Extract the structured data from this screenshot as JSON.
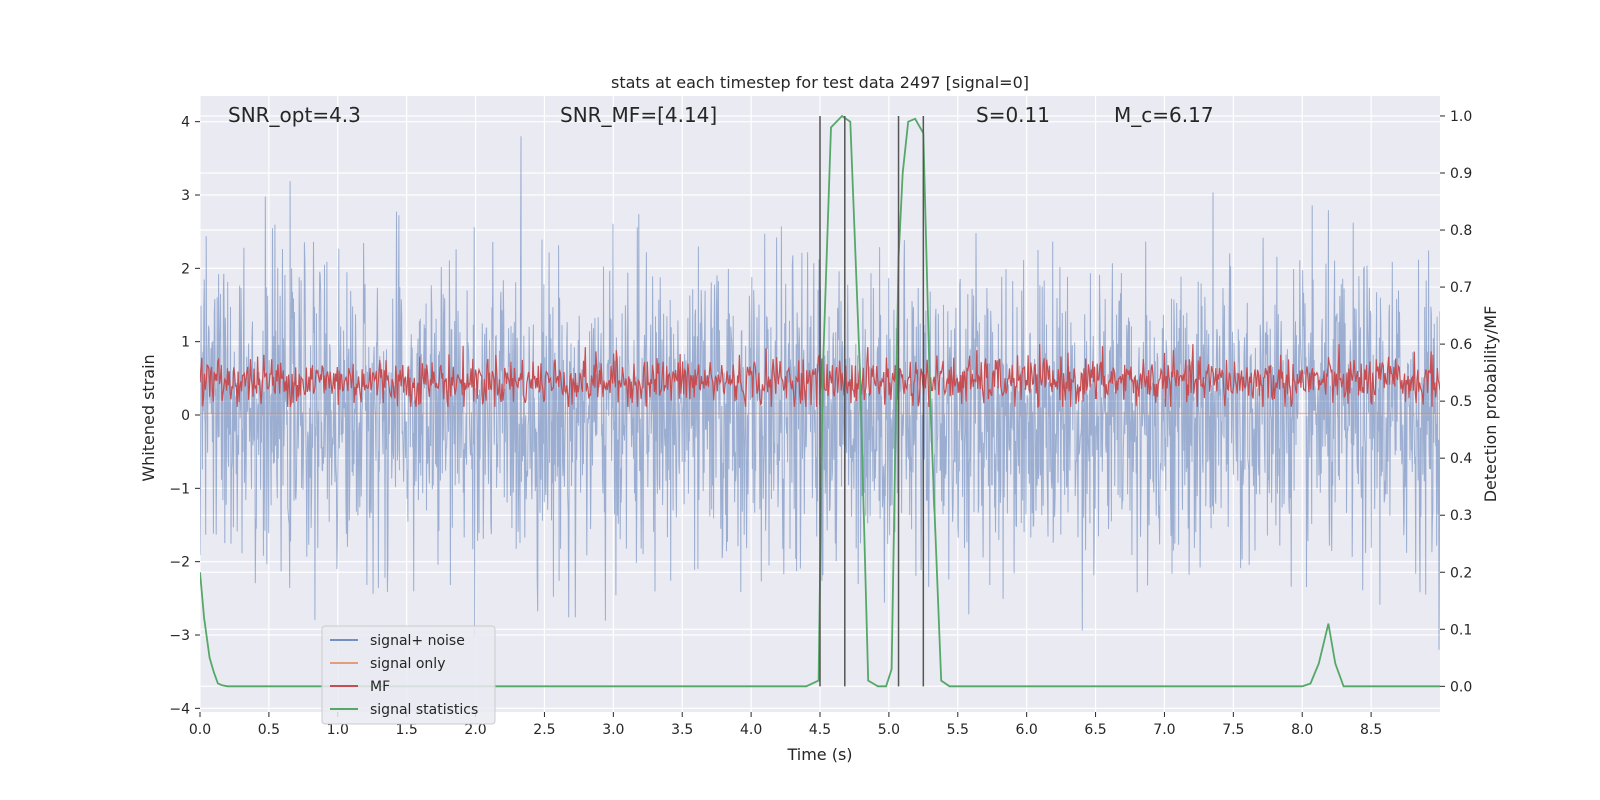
{
  "chart_data": {
    "type": "line",
    "title": "stats at each timestep for test data 2497 [signal=0]",
    "xlabel": "Time (s)",
    "ylabel_left": "Whitened strain",
    "ylabel_right": "Detection probability/MF",
    "xlim": [
      0,
      9
    ],
    "ylim_left": [
      -4.05,
      4.35
    ],
    "ylim_right": [
      -0.045,
      1.035
    ],
    "xticks": [
      "0.0",
      "0.5",
      "1.0",
      "1.5",
      "2.0",
      "2.5",
      "3.0",
      "3.5",
      "4.0",
      "4.5",
      "5.0",
      "5.5",
      "6.0",
      "6.5",
      "7.0",
      "7.5",
      "8.0",
      "8.5"
    ],
    "yticks_left": [
      "−4",
      "−3",
      "−2",
      "−1",
      "0",
      "1",
      "2",
      "3",
      "4"
    ],
    "yticks_right": [
      "0.0",
      "0.1",
      "0.2",
      "0.3",
      "0.4",
      "0.5",
      "0.6",
      "0.7",
      "0.8",
      "0.9",
      "1.0"
    ],
    "grid": true,
    "legend_position": "lower-left",
    "annotations": [
      {
        "id": "snr_opt",
        "text": "SNR_opt=4.3"
      },
      {
        "id": "snr_mf",
        "text": "SNR_MF=[4.14]"
      },
      {
        "id": "s",
        "text": "S=0.11"
      },
      {
        "id": "mc",
        "text": "M_c=6.17"
      }
    ],
    "vertical_lines_x": [
      4.5,
      4.68,
      5.07,
      5.25
    ],
    "series": [
      {
        "name": "signal+ noise",
        "axis": "left",
        "color": "#4c72b0",
        "alpha": 0.5,
        "kind": "noise",
        "range": [
          -3.2,
          3.8
        ],
        "typical_range": [
          -1.6,
          1.6
        ]
      },
      {
        "name": "signal only",
        "axis": "left",
        "color": "#dd8452",
        "alpha": 0.5,
        "kind": "constant",
        "value": 0.02
      },
      {
        "name": "MF",
        "axis": "right",
        "color": "#c44e52",
        "alpha": 1.0,
        "kind": "noise",
        "range": [
          0.49,
          0.6
        ],
        "typical_range": [
          0.5,
          0.57
        ]
      },
      {
        "name": "signal statistics",
        "axis": "right",
        "color": "#55a868",
        "alpha": 1.0,
        "kind": "line",
        "x": [
          0,
          0.03,
          0.07,
          0.1,
          0.13,
          0.16,
          0.2,
          0.25,
          0.5,
          1.0,
          2.0,
          3.0,
          4.0,
          4.4,
          4.49,
          4.52,
          4.58,
          4.66,
          4.72,
          4.79,
          4.85,
          4.92,
          4.98,
          5.02,
          5.07,
          5.1,
          5.14,
          5.19,
          5.25,
          5.3,
          5.38,
          5.44,
          6.0,
          7.0,
          7.5,
          8.0,
          8.06,
          8.12,
          8.19,
          8.24,
          8.3,
          8.5,
          9.0
        ],
        "y": [
          0.2,
          0.12,
          0.05,
          0.025,
          0.005,
          0.002,
          0.0,
          0.0,
          0.0,
          0.0,
          0.0,
          0.0,
          0.0,
          0.0,
          0.01,
          0.55,
          0.98,
          1.0,
          0.99,
          0.55,
          0.01,
          0.0,
          0.0,
          0.03,
          0.75,
          0.9,
          0.99,
          0.995,
          0.97,
          0.5,
          0.01,
          0.0,
          0.0,
          0.0,
          0.0,
          0.0,
          0.005,
          0.04,
          0.11,
          0.04,
          0.0,
          0.0,
          0.0
        ]
      }
    ]
  }
}
